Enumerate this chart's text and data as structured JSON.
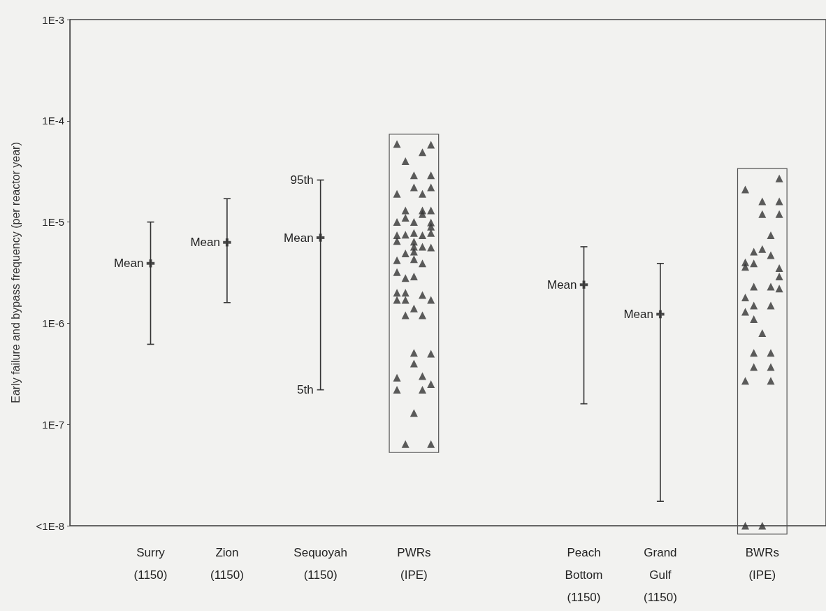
{
  "chart_data": {
    "type": "scatter",
    "ylabel": "Early failure and bypass frequency (per reactor year)",
    "log": "y",
    "categories": [
      null,
      null,
      null,
      null,
      null,
      null,
      null,
      null,
      null,
      "Surry\n(1150)",
      null,
      null,
      null,
      null,
      null,
      null,
      null,
      null,
      "Zion\n(1150)",
      null,
      null,
      null,
      null,
      null,
      null,
      null,
      null,
      null,
      null,
      "Sequoyah\n(1150)",
      null,
      null,
      null,
      null,
      null,
      null,
      null,
      null,
      null,
      null,
      "PWRs\n(IPE)",
      null,
      null,
      null,
      null,
      null,
      null,
      null,
      null,
      null,
      null,
      null,
      null,
      null,
      null,
      null,
      null,
      null,
      null,
      null,
      "Peach\nBottom\n(1150)",
      null,
      null,
      null,
      null,
      null,
      null,
      null,
      null,
      "Grand\nGulf\n(1150)",
      null,
      null,
      null,
      null,
      null,
      null,
      null,
      null,
      null,
      null,
      null,
      "BWRs\n(IPE)",
      null,
      null,
      null,
      null,
      null,
      null,
      null
    ],
    "ylim": [
      1e-08,
      0.001
    ],
    "yticks": [
      {
        "value": 1e-08,
        "label": "<1E-8"
      },
      {
        "value": 1e-07,
        "label": "1E-7"
      },
      {
        "value": 1e-06,
        "label": "1E-6"
      },
      {
        "value": 1e-05,
        "label": "1E-5"
      },
      {
        "value": 0.0001,
        "label": "1E-4"
      },
      {
        "value": 0.001,
        "label": "1E-3"
      }
    ],
    "series": [
      {
        "marker": "cross",
        "color": "#333333",
        "values": [
          null,
          null,
          null,
          null,
          null,
          null,
          null,
          null,
          null,
          3.9e-06,
          null,
          null,
          null,
          null,
          null,
          null,
          null,
          null,
          6.3e-06,
          null,
          null,
          null,
          null,
          null,
          null,
          null,
          null,
          null,
          null,
          7e-06,
          null,
          null,
          null,
          null,
          null,
          null,
          null,
          null,
          null,
          null,
          null,
          null,
          null,
          null,
          null,
          null,
          null,
          null,
          null,
          null,
          null,
          null,
          null,
          null,
          null,
          null,
          null,
          null,
          null,
          null,
          2.4e-06,
          null,
          null,
          null,
          null,
          null,
          null,
          null,
          null,
          1.23e-06,
          null,
          null,
          null,
          null,
          null,
          null,
          null,
          null,
          null,
          null,
          null,
          null,
          null,
          null,
          null,
          null,
          null,
          null,
          null
        ],
        "errors": [
          null,
          null,
          null,
          null,
          null,
          null,
          null,
          null,
          null,
          [
            6.2e-07,
            1e-05
          ],
          null,
          null,
          null,
          null,
          null,
          null,
          null,
          null,
          [
            1.6e-06,
            1.7e-05
          ],
          null,
          null,
          null,
          null,
          null,
          null,
          null,
          null,
          null,
          null,
          [
            2.2e-07,
            2.6e-05
          ],
          null,
          null,
          null,
          null,
          null,
          null,
          null,
          null,
          null,
          null,
          null,
          null,
          null,
          null,
          null,
          null,
          null,
          null,
          null,
          null,
          null,
          null,
          null,
          null,
          null,
          null,
          null,
          null,
          null,
          null,
          [
            1.6e-07,
            5.7e-06
          ],
          null,
          null,
          null,
          null,
          null,
          null,
          null,
          null,
          [
            1.74e-08,
            3.9e-06
          ],
          null,
          null,
          null,
          null,
          null,
          null,
          null,
          null,
          null,
          null,
          null,
          null,
          null,
          null,
          null,
          null,
          null,
          null,
          null
        ]
      },
      {
        "marker": "triangle",
        "color": "#333333",
        "values": [
          null,
          null,
          null,
          null,
          null,
          null,
          null,
          null,
          null,
          null,
          null,
          null,
          null,
          null,
          null,
          null,
          null,
          null,
          null,
          null,
          null,
          null,
          null,
          null,
          null,
          null,
          null,
          null,
          null,
          null,
          null,
          null,
          null,
          null,
          null,
          null,
          null,
          null,
          5.9e-05,
          4e-05,
          2.9e-05,
          4.9e-05,
          5.8e-05,
          null,
          null,
          null,
          null,
          null,
          null,
          null,
          null,
          null,
          null,
          null,
          null,
          null,
          null,
          null,
          null,
          null,
          null,
          null,
          null,
          null,
          null,
          null,
          null,
          null,
          null,
          null,
          null,
          null,
          null,
          null,
          null,
          null,
          null,
          null,
          null,
          2.1e-05,
          5.1e-06,
          1.6e-05,
          7.4e-06,
          2.7e-05,
          null,
          null,
          null,
          null,
          null
        ]
      },
      {
        "marker": "triangle",
        "color": "#333333",
        "values": [
          null,
          null,
          null,
          null,
          null,
          null,
          null,
          null,
          null,
          null,
          null,
          null,
          null,
          null,
          null,
          null,
          null,
          null,
          null,
          null,
          null,
          null,
          null,
          null,
          null,
          null,
          null,
          null,
          null,
          null,
          null,
          null,
          null,
          null,
          null,
          null,
          null,
          null,
          1.9e-05,
          1.3e-05,
          2.2e-05,
          1.9e-05,
          2.9e-05,
          null,
          null,
          null,
          null,
          null,
          null,
          null,
          null,
          null,
          null,
          null,
          null,
          null,
          null,
          null,
          null,
          null,
          null,
          null,
          null,
          null,
          null,
          null,
          null,
          null,
          null,
          null,
          null,
          null,
          null,
          null,
          null,
          null,
          null,
          null,
          null,
          4e-06,
          3.9e-06,
          1.2e-05,
          4.7e-06,
          1.6e-05,
          null,
          null,
          null,
          null,
          null
        ]
      },
      {
        "marker": "triangle",
        "color": "#333333",
        "values": [
          null,
          null,
          null,
          null,
          null,
          null,
          null,
          null,
          null,
          null,
          null,
          null,
          null,
          null,
          null,
          null,
          null,
          null,
          null,
          null,
          null,
          null,
          null,
          null,
          null,
          null,
          null,
          null,
          null,
          null,
          null,
          null,
          null,
          null,
          null,
          null,
          null,
          null,
          1e-05,
          1.1e-05,
          1e-05,
          1.3e-05,
          2.2e-05,
          null,
          null,
          null,
          null,
          null,
          null,
          null,
          null,
          null,
          null,
          null,
          null,
          null,
          null,
          null,
          null,
          null,
          null,
          null,
          null,
          null,
          null,
          null,
          null,
          null,
          null,
          null,
          null,
          null,
          null,
          null,
          null,
          null,
          null,
          null,
          null,
          3.6e-06,
          2.3e-06,
          5.4e-06,
          2.3e-06,
          1.2e-05,
          null,
          null,
          null,
          null,
          null
        ]
      },
      {
        "marker": "triangle",
        "color": "#333333",
        "values": [
          null,
          null,
          null,
          null,
          null,
          null,
          null,
          null,
          null,
          null,
          null,
          null,
          null,
          null,
          null,
          null,
          null,
          null,
          null,
          null,
          null,
          null,
          null,
          null,
          null,
          null,
          null,
          null,
          null,
          null,
          null,
          null,
          null,
          null,
          null,
          null,
          null,
          null,
          7.4e-06,
          7.5e-06,
          7.8e-06,
          1.2e-05,
          1.3e-05,
          null,
          null,
          null,
          null,
          null,
          null,
          null,
          null,
          null,
          null,
          null,
          null,
          null,
          null,
          null,
          null,
          null,
          null,
          null,
          null,
          null,
          null,
          null,
          null,
          null,
          null,
          null,
          null,
          null,
          null,
          null,
          null,
          null,
          null,
          null,
          null,
          1.8e-06,
          1.5e-06,
          8e-07,
          1.5e-06,
          3.5e-06,
          null,
          null,
          null,
          null,
          null
        ]
      },
      {
        "marker": "triangle",
        "color": "#333333",
        "values": [
          null,
          null,
          null,
          null,
          null,
          null,
          null,
          null,
          null,
          null,
          null,
          null,
          null,
          null,
          null,
          null,
          null,
          null,
          null,
          null,
          null,
          null,
          null,
          null,
          null,
          null,
          null,
          null,
          null,
          null,
          null,
          null,
          null,
          null,
          null,
          null,
          null,
          null,
          6.5e-06,
          4.9e-06,
          6.4e-06,
          7.4e-06,
          9.9e-06,
          null,
          null,
          null,
          null,
          null,
          null,
          null,
          null,
          null,
          null,
          null,
          null,
          null,
          null,
          null,
          null,
          null,
          null,
          null,
          null,
          null,
          null,
          null,
          null,
          null,
          null,
          null,
          null,
          null,
          null,
          null,
          null,
          null,
          null,
          null,
          null,
          1.3e-06,
          1.1e-06,
          1e-08,
          5.1e-07,
          2.9e-06,
          null,
          null,
          null,
          null,
          null
        ]
      },
      {
        "marker": "triangle",
        "color": "#333333",
        "values": [
          null,
          null,
          null,
          null,
          null,
          null,
          null,
          null,
          null,
          null,
          null,
          null,
          null,
          null,
          null,
          null,
          null,
          null,
          null,
          null,
          null,
          null,
          null,
          null,
          null,
          null,
          null,
          null,
          null,
          null,
          null,
          null,
          null,
          null,
          null,
          null,
          null,
          null,
          4.2e-06,
          2.8e-06,
          5.7e-06,
          5.7e-06,
          9e-06,
          null,
          null,
          null,
          null,
          null,
          null,
          null,
          null,
          null,
          null,
          null,
          null,
          null,
          null,
          null,
          null,
          null,
          null,
          null,
          null,
          null,
          null,
          null,
          null,
          null,
          null,
          null,
          null,
          null,
          null,
          null,
          null,
          null,
          null,
          null,
          null,
          2.7e-07,
          5.1e-07,
          null,
          3.7e-07,
          2.2e-06,
          null,
          null,
          null,
          null,
          null
        ]
      },
      {
        "marker": "triangle",
        "color": "#333333",
        "values": [
          null,
          null,
          null,
          null,
          null,
          null,
          null,
          null,
          null,
          null,
          null,
          null,
          null,
          null,
          null,
          null,
          null,
          null,
          null,
          null,
          null,
          null,
          null,
          null,
          null,
          null,
          null,
          null,
          null,
          null,
          null,
          null,
          null,
          null,
          null,
          null,
          null,
          null,
          3.2e-06,
          2e-06,
          5.1e-06,
          3.9e-06,
          7.8e-06,
          null,
          null,
          null,
          null,
          null,
          null,
          null,
          null,
          null,
          null,
          null,
          null,
          null,
          null,
          null,
          null,
          null,
          null,
          null,
          null,
          null,
          null,
          null,
          null,
          null,
          null,
          null,
          null,
          null,
          null,
          null,
          null,
          null,
          null,
          null,
          null,
          1e-08,
          3.7e-07,
          null,
          2.7e-07,
          null,
          null,
          null,
          null,
          null,
          null
        ]
      },
      {
        "marker": "triangle",
        "color": "#333333",
        "values": [
          null,
          null,
          null,
          null,
          null,
          null,
          null,
          null,
          null,
          null,
          null,
          null,
          null,
          null,
          null,
          null,
          null,
          null,
          null,
          null,
          null,
          null,
          null,
          null,
          null,
          null,
          null,
          null,
          null,
          null,
          null,
          null,
          null,
          null,
          null,
          null,
          null,
          null,
          2e-06,
          1.7e-06,
          4.3e-06,
          1.9e-06,
          5.6e-06,
          null,
          null,
          null,
          null,
          null,
          null,
          null,
          null,
          null,
          null,
          null,
          null,
          null,
          null,
          null,
          null,
          null,
          null,
          null,
          null,
          null,
          null,
          null,
          null,
          null,
          null,
          null,
          null,
          null,
          null,
          null,
          null,
          null,
          null,
          null,
          null,
          null,
          null,
          null,
          null,
          null,
          null,
          null,
          null,
          null,
          null
        ]
      },
      {
        "marker": "triangle",
        "color": "#333333",
        "values": [
          null,
          null,
          null,
          null,
          null,
          null,
          null,
          null,
          null,
          null,
          null,
          null,
          null,
          null,
          null,
          null,
          null,
          null,
          null,
          null,
          null,
          null,
          null,
          null,
          null,
          null,
          null,
          null,
          null,
          null,
          null,
          null,
          null,
          null,
          null,
          null,
          null,
          null,
          1.7e-06,
          1.2e-06,
          2.9e-06,
          1.2e-06,
          1.7e-06,
          null,
          null,
          null,
          null,
          null,
          null,
          null,
          null,
          null,
          null,
          null,
          null,
          null,
          null,
          null,
          null,
          null,
          null,
          null,
          null,
          null,
          null,
          null,
          null,
          null,
          null,
          null,
          null,
          null,
          null,
          null,
          null,
          null,
          null,
          null,
          null,
          null,
          null,
          null,
          null,
          null,
          null,
          null,
          null,
          null,
          null
        ]
      },
      {
        "marker": "triangle",
        "color": "#333333",
        "values": [
          null,
          null,
          null,
          null,
          null,
          null,
          null,
          null,
          null,
          null,
          null,
          null,
          null,
          null,
          null,
          null,
          null,
          null,
          null,
          null,
          null,
          null,
          null,
          null,
          null,
          null,
          null,
          null,
          null,
          null,
          null,
          null,
          null,
          null,
          null,
          null,
          null,
          null,
          2.9e-07,
          6.4e-08,
          1.4e-06,
          3e-07,
          5e-07,
          null,
          null,
          null,
          null,
          null,
          null,
          null,
          null,
          null,
          null,
          null,
          null,
          null,
          null,
          null,
          null,
          null,
          null,
          null,
          null,
          null,
          null,
          null,
          null,
          null,
          null,
          null,
          null,
          null,
          null,
          null,
          null,
          null,
          null,
          null,
          null,
          null,
          null,
          null,
          null,
          null,
          null,
          null,
          null,
          null,
          null
        ]
      },
      {
        "marker": "triangle",
        "color": "#333333",
        "values": [
          null,
          null,
          null,
          null,
          null,
          null,
          null,
          null,
          null,
          null,
          null,
          null,
          null,
          null,
          null,
          null,
          null,
          null,
          null,
          null,
          null,
          null,
          null,
          null,
          null,
          null,
          null,
          null,
          null,
          null,
          null,
          null,
          null,
          null,
          null,
          null,
          null,
          null,
          2.2e-07,
          null,
          5.1e-07,
          2.2e-07,
          2.5e-07,
          null,
          null,
          null,
          null,
          null,
          null,
          null,
          null,
          null,
          null,
          null,
          null,
          null,
          null,
          null,
          null,
          null,
          null,
          null,
          null,
          null,
          null,
          null,
          null,
          null,
          null,
          null,
          null,
          null,
          null,
          null,
          null,
          null,
          null,
          null,
          null,
          null,
          null,
          null,
          null,
          null,
          null,
          null,
          null,
          null,
          null
        ]
      },
      {
        "marker": "triangle",
        "color": "#333333",
        "values": [
          null,
          null,
          null,
          null,
          null,
          null,
          null,
          null,
          null,
          null,
          null,
          null,
          null,
          null,
          null,
          null,
          null,
          null,
          null,
          null,
          null,
          null,
          null,
          null,
          null,
          null,
          null,
          null,
          null,
          null,
          null,
          null,
          null,
          null,
          null,
          null,
          null,
          null,
          null,
          null,
          4e-07,
          null,
          6.4e-08,
          null,
          null,
          null,
          null,
          null,
          null,
          null,
          null,
          null,
          null,
          null,
          null,
          null,
          null,
          null,
          null,
          null,
          null,
          null,
          null,
          null,
          null,
          null,
          null,
          null,
          null,
          null,
          null,
          null,
          null,
          null,
          null,
          null,
          null,
          null,
          null,
          null,
          null,
          null,
          null,
          null,
          null,
          null,
          null,
          null,
          null
        ]
      },
      {
        "marker": "triangle",
        "color": "#333333",
        "values": [
          null,
          null,
          null,
          null,
          null,
          null,
          null,
          null,
          null,
          null,
          null,
          null,
          null,
          null,
          null,
          null,
          null,
          null,
          null,
          null,
          null,
          null,
          null,
          null,
          null,
          null,
          null,
          null,
          null,
          null,
          null,
          null,
          null,
          null,
          null,
          null,
          null,
          null,
          null,
          null,
          1.3e-07,
          null,
          null,
          null,
          null,
          null,
          null,
          null,
          null,
          null,
          null,
          null,
          null,
          null,
          null,
          null,
          null,
          null,
          null,
          null,
          null,
          null,
          null,
          null,
          null,
          null,
          null,
          null,
          null,
          null,
          null,
          null,
          null,
          null,
          null,
          null,
          null,
          null,
          null,
          null,
          null,
          null,
          null,
          null,
          null,
          null,
          null,
          null,
          null
        ]
      }
    ],
    "annotations": [
      {
        "text": "Mean",
        "x": "Surry\n(1150)",
        "y": 3.9e-06
      },
      {
        "text": "Mean",
        "x": "Zion\n(1150)",
        "y": 6.3e-06
      },
      {
        "text": "Mean",
        "x": "Sequoyah\n(1150)",
        "y": 7e-06
      },
      {
        "text": "95th",
        "x": "Sequoyah\n(1150)",
        "y": 2.6e-05
      },
      {
        "text": "5th",
        "x": "Sequoyah\n(1150)",
        "y": 2.2e-07
      },
      {
        "text": "Mean",
        "x": "Peach\nBottom\n(1150)",
        "y": 2.4e-06
      },
      {
        "text": "Mean",
        "x": "Grand\nGulf\n(1150)",
        "y": 1.23e-06
      }
    ]
  }
}
